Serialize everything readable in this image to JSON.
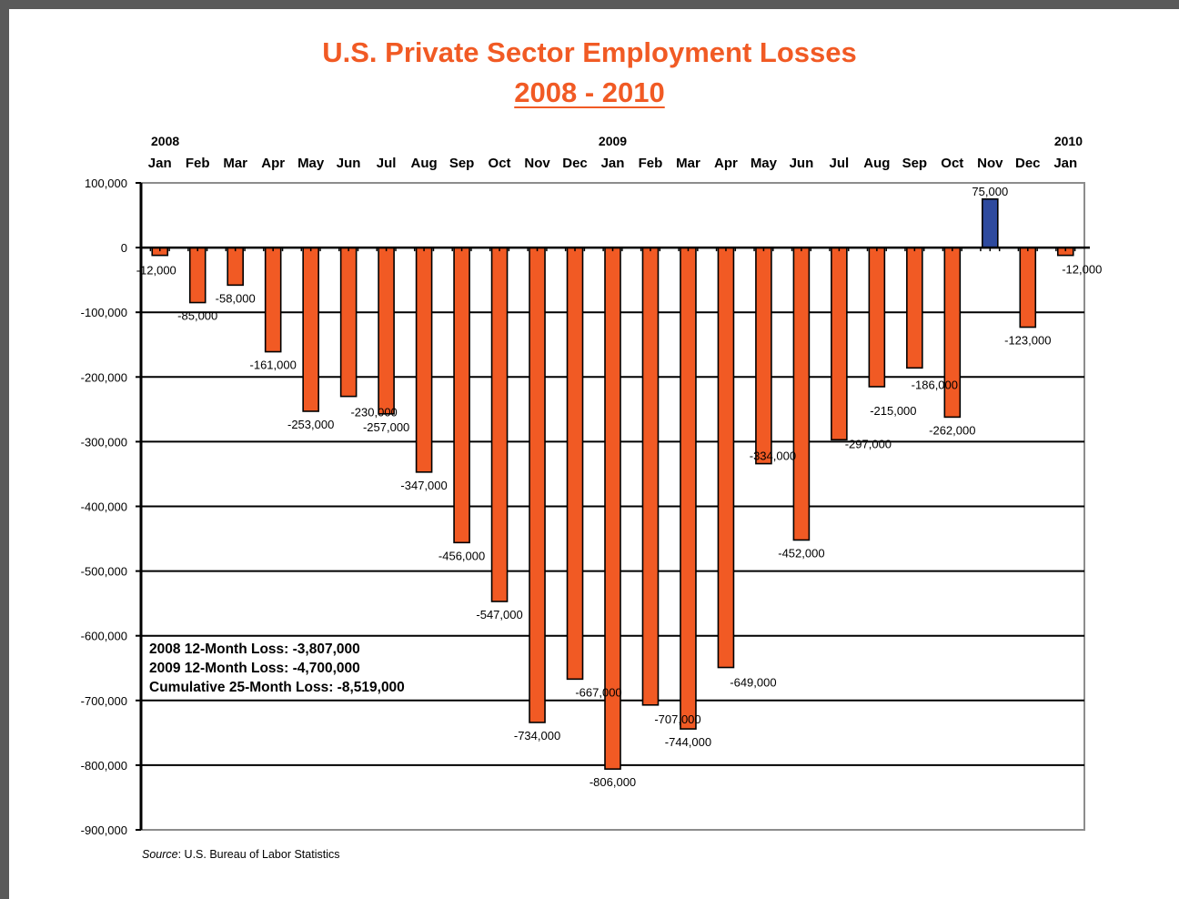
{
  "title": "U.S. Private Sector Employment Losses",
  "subtitle": "2008 - 2010",
  "source_prefix": "Source",
  "source_text": ": U.S. Bureau of Labor Statistics",
  "year_labels": [
    {
      "label": "2008",
      "index": 0
    },
    {
      "label": "2009",
      "index": 12
    },
    {
      "label": "2010",
      "index": 24
    }
  ],
  "notes": [
    "2008 12-Month Loss: -3,807,000",
    "2009 12-Month Loss: -4,700,000",
    "Cumulative 25-Month Loss:  -8,519,000"
  ],
  "colors": {
    "loss_bar": "#f15a24",
    "gain_bar": "#2e4a9e",
    "title": "#f15a24"
  },
  "chart_data": {
    "type": "bar",
    "title": "U.S. Private Sector Employment Losses",
    "subtitle": "2008 - 2010",
    "categories": [
      "Jan",
      "Feb",
      "Mar",
      "Apr",
      "May",
      "Jun",
      "Jul",
      "Aug",
      "Sep",
      "Oct",
      "Nov",
      "Dec",
      "Jan",
      "Feb",
      "Mar",
      "Apr",
      "May",
      "Jun",
      "Jul",
      "Aug",
      "Sep",
      "Oct",
      "Nov",
      "Dec",
      "Jan"
    ],
    "values": [
      -12000,
      -85000,
      -58000,
      -161000,
      -253000,
      -230000,
      -257000,
      -347000,
      -456000,
      -547000,
      -734000,
      -667000,
      -806000,
      -707000,
      -744000,
      -649000,
      -334000,
      -452000,
      -297000,
      -215000,
      -186000,
      -262000,
      75000,
      -123000,
      -12000
    ],
    "data_labels": [
      "-12,000",
      "-85,000",
      "-58,000",
      "-161,000",
      "-253,000",
      "-230,000",
      "-257,000",
      "-347,000",
      "-456,000",
      "-547,000",
      "-734,000",
      "-667,000",
      "-806,000",
      "-707,000",
      "-744,000",
      "-649,000",
      "-334,000",
      "-452,000",
      "-297,000",
      "-215,000",
      "-186,000",
      "-262,000",
      "75,000",
      "-123,000",
      "-12,000"
    ],
    "ylim": [
      -900000,
      100000
    ],
    "yticks": [
      100000,
      0,
      -100000,
      -200000,
      -300000,
      -400000,
      -500000,
      -600000,
      -700000,
      -800000,
      -900000
    ],
    "ytick_labels": [
      "100,000",
      "0",
      "-100,000",
      "-200,000",
      "-300,000",
      "-400,000",
      "-500,000",
      "-600,000",
      "-700,000",
      "-800,000",
      "-900,000"
    ],
    "grid": true,
    "xlabel": "",
    "ylabel": ""
  }
}
